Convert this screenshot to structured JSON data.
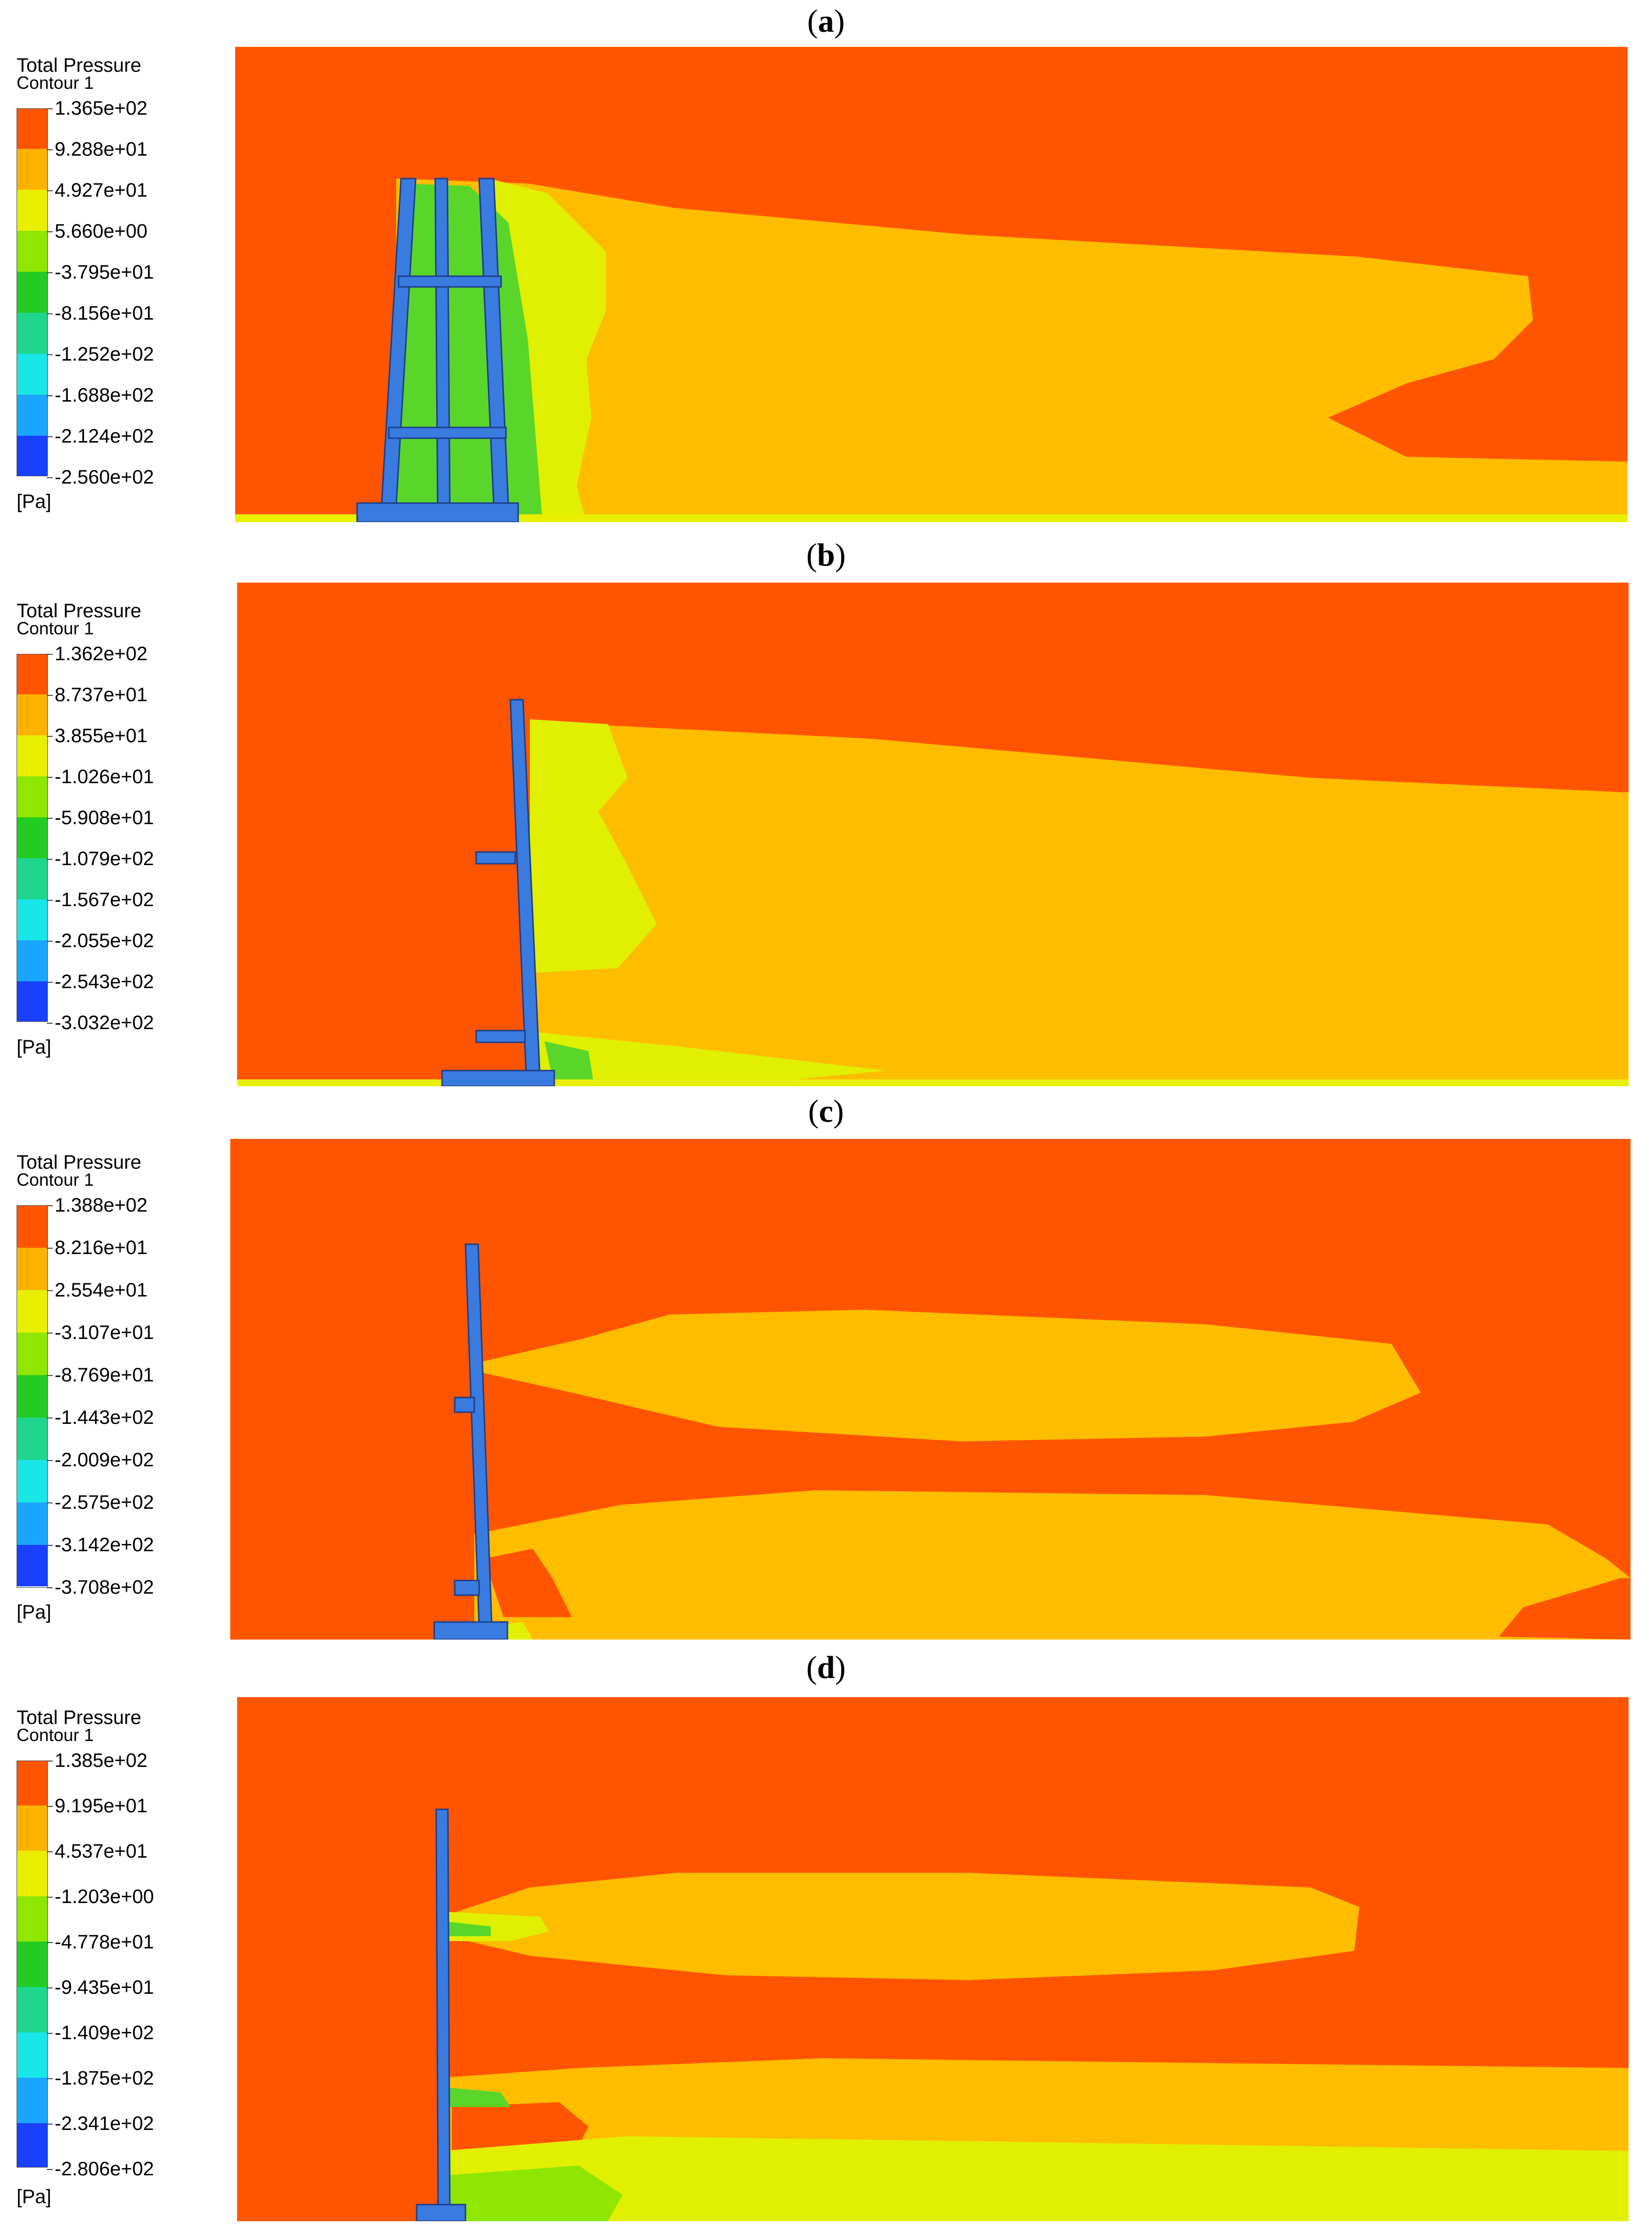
{
  "panels": [
    {
      "label": "a",
      "legend": {
        "title": "Total Pressure",
        "subtitle": "Contour 1",
        "unit": "[Pa]",
        "ticks": [
          "1.365e+02",
          "9.288e+01",
          "4.927e+01",
          "5.660e+00",
          "-3.795e+01",
          "-8.156e+01",
          "-1.252e+02",
          "-1.688e+02",
          "-2.124e+02",
          "-2.560e+02"
        ]
      }
    },
    {
      "label": "b",
      "legend": {
        "title": "Total Pressure",
        "subtitle": "Contour 1",
        "unit": "[Pa]",
        "ticks": [
          "1.362e+02",
          "8.737e+01",
          "3.855e+01",
          "-1.026e+01",
          "-5.908e+01",
          "-1.079e+02",
          "-1.567e+02",
          "-2.055e+02",
          "-2.543e+02",
          "-3.032e+02"
        ]
      }
    },
    {
      "label": "c",
      "legend": {
        "title": "Total Pressure",
        "subtitle": "Contour 1",
        "unit": "[Pa]",
        "ticks": [
          "1.388e+02",
          "8.216e+01",
          "2.554e+01",
          "-3.107e+01",
          "-8.769e+01",
          "-1.443e+02",
          "-2.009e+02",
          "-2.575e+02",
          "-3.142e+02",
          "-3.708e+02"
        ]
      }
    },
    {
      "label": "d",
      "legend": {
        "title": "Total Pressure",
        "subtitle": "Contour 1",
        "unit": "[Pa]",
        "ticks": [
          "1.385e+02",
          "9.195e+01",
          "4.537e+01",
          "-1.203e+00",
          "-4.778e+01",
          "-9.435e+01",
          "-1.409e+02",
          "-1.875e+02",
          "-2.341e+02",
          "-2.806e+02"
        ]
      }
    }
  ],
  "colormap": [
    "#ff5500",
    "#ffb300",
    "#e8f000",
    "#8fe600",
    "#22cc22",
    "#1fd68f",
    "#19e6e6",
    "#1aa6ff",
    "#2a7bff",
    "#1a40ff"
  ],
  "field_colors": {
    "freestream": "#ff5500",
    "wake": "#ffbd00",
    "near_wake": "#e0f000",
    "low": "#5ad62a",
    "structure": "#3a7be0"
  }
}
